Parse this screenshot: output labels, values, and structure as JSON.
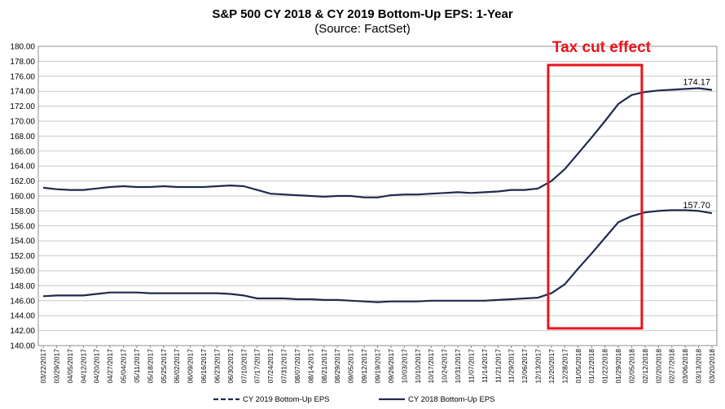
{
  "chart_data": {
    "type": "line",
    "title": "S&P 500 CY 2018 & CY 2019 Bottom-Up EPS: 1-Year",
    "subtitle": "(Source: FactSet)",
    "ylim": [
      140,
      180
    ],
    "yticks": [
      "140.00",
      "142.00",
      "144.00",
      "146.00",
      "148.00",
      "150.00",
      "152.00",
      "154.00",
      "156.00",
      "158.00",
      "160.00",
      "162.00",
      "164.00",
      "166.00",
      "168.00",
      "170.00",
      "172.00",
      "174.00",
      "176.00",
      "178.00",
      "180.00"
    ],
    "categories": [
      "03/22/2017",
      "03/29/2017",
      "04/05/2017",
      "04/12/2017",
      "04/20/2017",
      "04/27/2017",
      "05/04/2017",
      "05/11/2017",
      "05/18/2017",
      "05/25/2017",
      "06/02/2017",
      "06/09/2017",
      "06/16/2017",
      "06/23/2017",
      "06/30/2017",
      "07/10/2017",
      "07/17/2017",
      "07/24/2017",
      "07/31/2017",
      "08/07/2017",
      "08/14/2017",
      "08/21/2017",
      "08/29/2017",
      "09/05/2017",
      "09/12/2017",
      "09/19/2017",
      "09/26/2017",
      "10/03/2017",
      "10/10/2017",
      "10/17/2017",
      "10/24/2017",
      "10/31/2017",
      "11/07/2017",
      "11/14/2017",
      "11/21/2017",
      "11/29/2017",
      "12/06/2017",
      "12/13/2017",
      "12/20/2017",
      "12/28/2017",
      "01/05/2018",
      "01/12/2018",
      "01/22/2018",
      "01/29/2018",
      "02/05/2018",
      "02/12/2018",
      "02/20/2018",
      "02/27/2018",
      "03/06/2018",
      "03/13/2018",
      "03/20/2018"
    ],
    "series": [
      {
        "name": "CY 2019 Bottom-Up EPS",
        "style": "dashed",
        "color": "#1f2a4e",
        "end_label": "174.17",
        "values": [
          161.1,
          160.9,
          160.8,
          160.8,
          161.0,
          161.2,
          161.3,
          161.2,
          161.2,
          161.3,
          161.2,
          161.2,
          161.2,
          161.3,
          161.4,
          161.3,
          160.8,
          160.3,
          160.2,
          160.1,
          160.0,
          159.9,
          160.0,
          160.0,
          159.8,
          159.8,
          160.1,
          160.2,
          160.2,
          160.3,
          160.4,
          160.5,
          160.4,
          160.5,
          160.6,
          160.8,
          160.8,
          161.0,
          162.0,
          163.6,
          165.7,
          167.8,
          170.0,
          172.3,
          173.5,
          173.9,
          174.1,
          174.2,
          174.3,
          174.4,
          174.17
        ]
      },
      {
        "name": "CY 2018 Bottom-Up EPS",
        "style": "solid",
        "color": "#1f2a4e",
        "end_label": "157.70",
        "values": [
          146.6,
          146.7,
          146.7,
          146.7,
          146.9,
          147.1,
          147.1,
          147.1,
          147.0,
          147.0,
          147.0,
          147.0,
          147.0,
          147.0,
          146.9,
          146.7,
          146.3,
          146.3,
          146.3,
          146.2,
          146.2,
          146.1,
          146.1,
          146.0,
          145.9,
          145.8,
          145.9,
          145.9,
          145.9,
          146.0,
          146.0,
          146.0,
          146.0,
          146.0,
          146.1,
          146.2,
          146.3,
          146.4,
          147.0,
          148.2,
          150.3,
          152.3,
          154.4,
          156.5,
          157.3,
          157.8,
          158.0,
          158.1,
          158.1,
          158.0,
          157.7
        ]
      }
    ],
    "annotation": {
      "text": "Tax cut effect",
      "color": "#e8141c",
      "x_start": "12/20/2017",
      "x_end": "02/12/2018",
      "y_range": [
        142.3,
        177.5
      ]
    },
    "legend": {
      "placement": "bottom-center"
    },
    "grid": true
  }
}
